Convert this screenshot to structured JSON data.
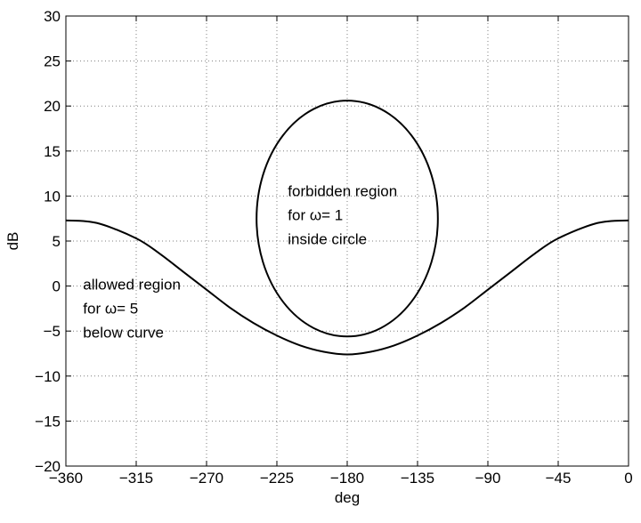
{
  "chart_data": {
    "type": "line",
    "title": "",
    "xlabel": "deg",
    "ylabel": "dB",
    "xlim": [
      -360,
      0
    ],
    "ylim": [
      -20,
      30
    ],
    "xticks": [
      -360,
      -315,
      -270,
      -225,
      -180,
      -135,
      -90,
      -45,
      0
    ],
    "yticks": [
      -20,
      -15,
      -10,
      -5,
      0,
      5,
      10,
      15,
      20,
      25,
      30
    ],
    "grid": true,
    "series": [
      {
        "kind": "curve",
        "x": [
          -360,
          -340,
          -315,
          -300,
          -285,
          -270,
          -255,
          -240,
          -225,
          -210,
          -195,
          -180,
          -165,
          -150,
          -135,
          -120,
          -105,
          -90,
          -75,
          -60,
          -45,
          -20,
          0
        ],
        "y": [
          7.3,
          7.0,
          5.3,
          3.6,
          1.6,
          -0.4,
          -2.4,
          -4.1,
          -5.5,
          -6.6,
          -7.3,
          -7.6,
          -7.3,
          -6.6,
          -5.5,
          -4.1,
          -2.4,
          -0.4,
          1.6,
          3.6,
          5.3,
          7.0,
          7.3
        ]
      },
      {
        "kind": "circle",
        "center_x": -180,
        "center_y": 7.5,
        "radius_x": 58,
        "radius_y": 13.1
      }
    ],
    "annotations": [
      {
        "lines": [
          "forbidden region",
          "for ω= 1",
          "inside circle"
        ],
        "x": -218,
        "y": 10
      },
      {
        "lines": [
          "allowed region",
          "for ω= 5",
          "below curve"
        ],
        "x": -349,
        "y": -0.4
      }
    ]
  }
}
